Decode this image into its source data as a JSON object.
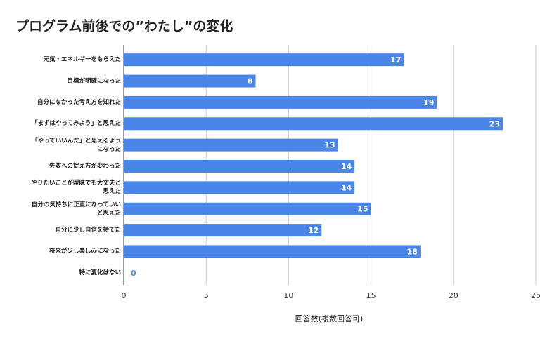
{
  "chart_data": {
    "type": "barh",
    "title": "プログラム前後での”わたし”の変化",
    "x_label": "回答数(複数回答可)",
    "categories": [
      "元気・エネルギーをもらえた",
      "目標が明確になった",
      "自分になかった考え方を知れた",
      "「まずはやってみよう」と思えた",
      "「やっていいんだ」と思えるようになった",
      "失敗への捉え方が変わった",
      "やりたいことが曖昧でも大丈夫と思えた",
      "自分の気持ちに正直になっていいと思えた",
      "自分に少し自信を持てた",
      "将来が少し楽しみになった",
      "特に変化はない"
    ],
    "values": [
      17,
      8,
      19,
      23,
      13,
      14,
      14,
      15,
      12,
      18,
      0
    ],
    "color": "#4a86e8",
    "xlim": [
      0,
      25
    ],
    "xticks": [
      0,
      5,
      10,
      15,
      20,
      25
    ],
    "grid": true
  }
}
